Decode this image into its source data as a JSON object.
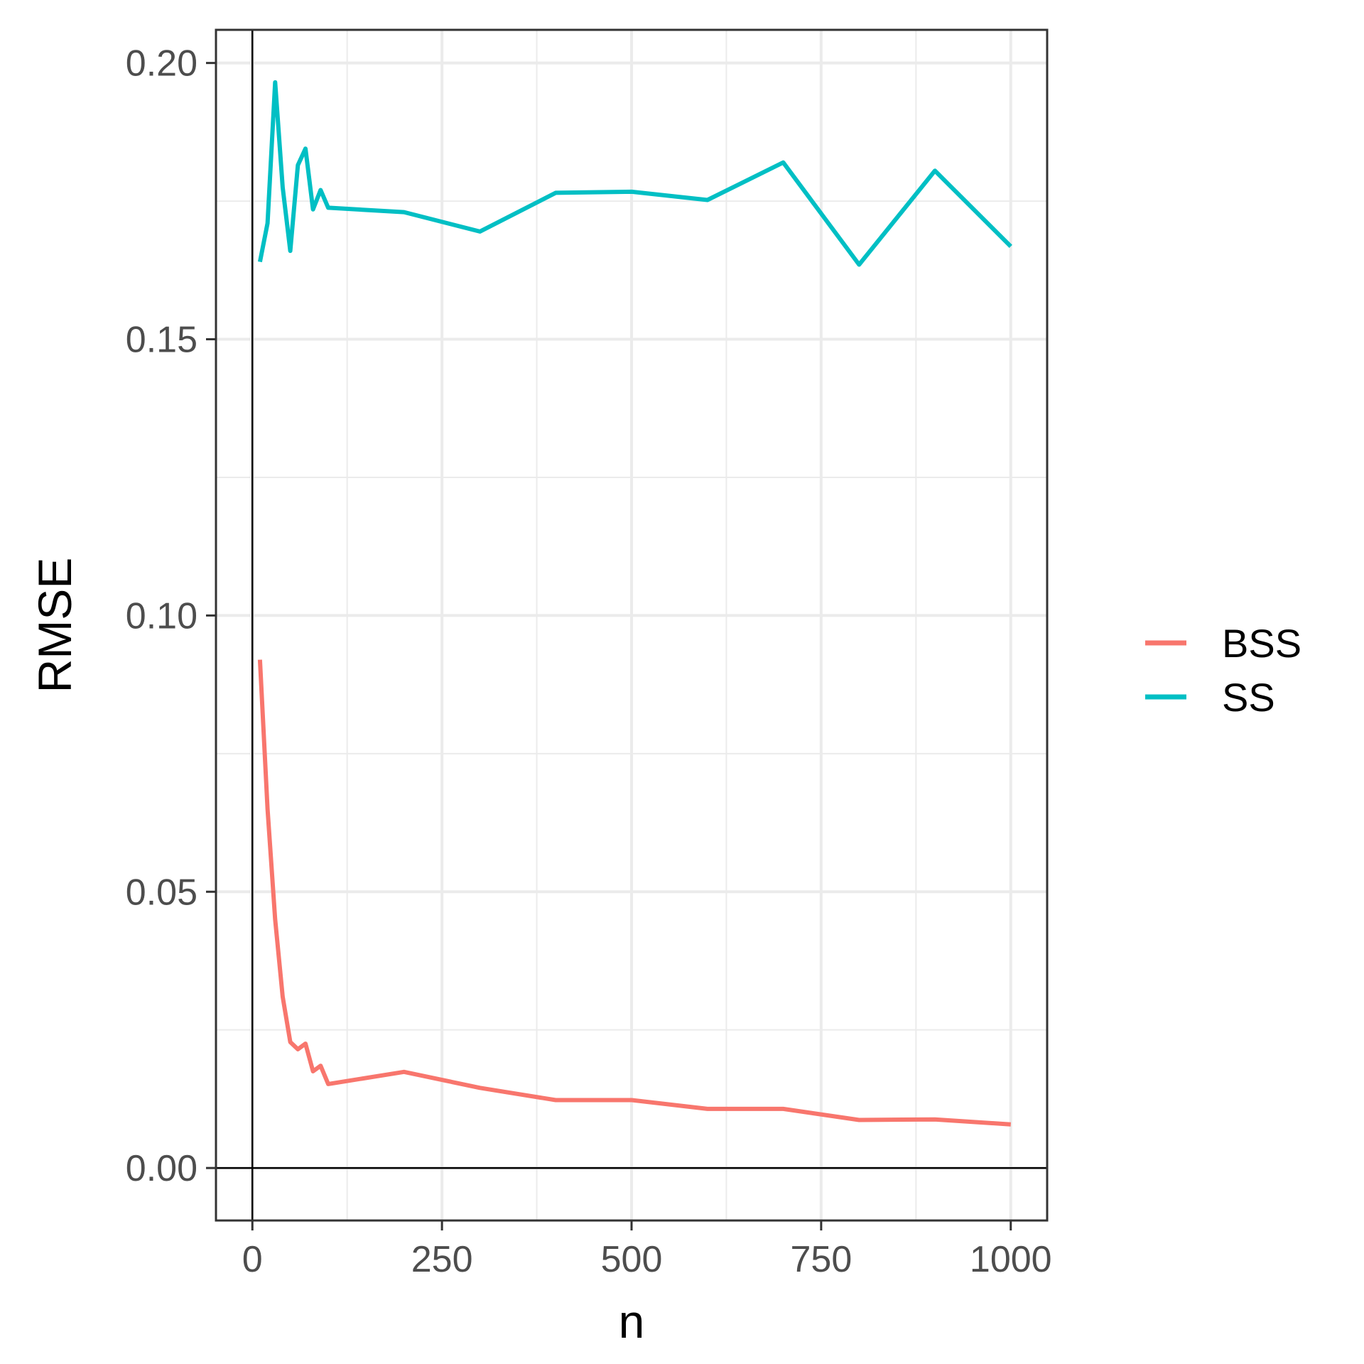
{
  "chart_data": {
    "type": "line",
    "title": "",
    "xlabel": "n",
    "ylabel": "RMSE",
    "xlim": [
      -48,
      1048
    ],
    "ylim": [
      -0.0095,
      0.206
    ],
    "x_ticks": [
      0,
      250,
      500,
      750,
      1000
    ],
    "x_tick_labels": [
      "0",
      "250",
      "500",
      "750",
      "1000"
    ],
    "y_ticks": [
      0.0,
      0.05,
      0.1,
      0.15,
      0.2
    ],
    "y_tick_labels": [
      "0.00",
      "0.05",
      "0.10",
      "0.15",
      "0.20"
    ],
    "grid": true,
    "reference_lines": {
      "x": 0,
      "y": 0
    },
    "legend": {
      "position": "right"
    },
    "series": [
      {
        "name": "BSS",
        "color": "#F8766D",
        "x": [
          10,
          20,
          30,
          40,
          50,
          60,
          70,
          80,
          90,
          100,
          200,
          300,
          400,
          500,
          600,
          700,
          800,
          900,
          1000
        ],
        "y": [
          0.092,
          0.065,
          0.045,
          0.031,
          0.0228,
          0.0215,
          0.0225,
          0.0175,
          0.0185,
          0.0152,
          0.0174,
          0.0145,
          0.0123,
          0.0123,
          0.0107,
          0.0107,
          0.0087,
          0.0088,
          0.0079
        ]
      },
      {
        "name": "SS",
        "color": "#00BFC4",
        "x": [
          10,
          20,
          30,
          40,
          50,
          60,
          70,
          80,
          90,
          100,
          200,
          300,
          400,
          500,
          600,
          700,
          800,
          900,
          1000
        ],
        "y": [
          0.164,
          0.171,
          0.1965,
          0.1775,
          0.166,
          0.1815,
          0.1845,
          0.1735,
          0.177,
          0.1738,
          0.173,
          0.1695,
          0.1765,
          0.1767,
          0.1752,
          0.182,
          0.1635,
          0.1805,
          0.1668
        ]
      }
    ]
  }
}
